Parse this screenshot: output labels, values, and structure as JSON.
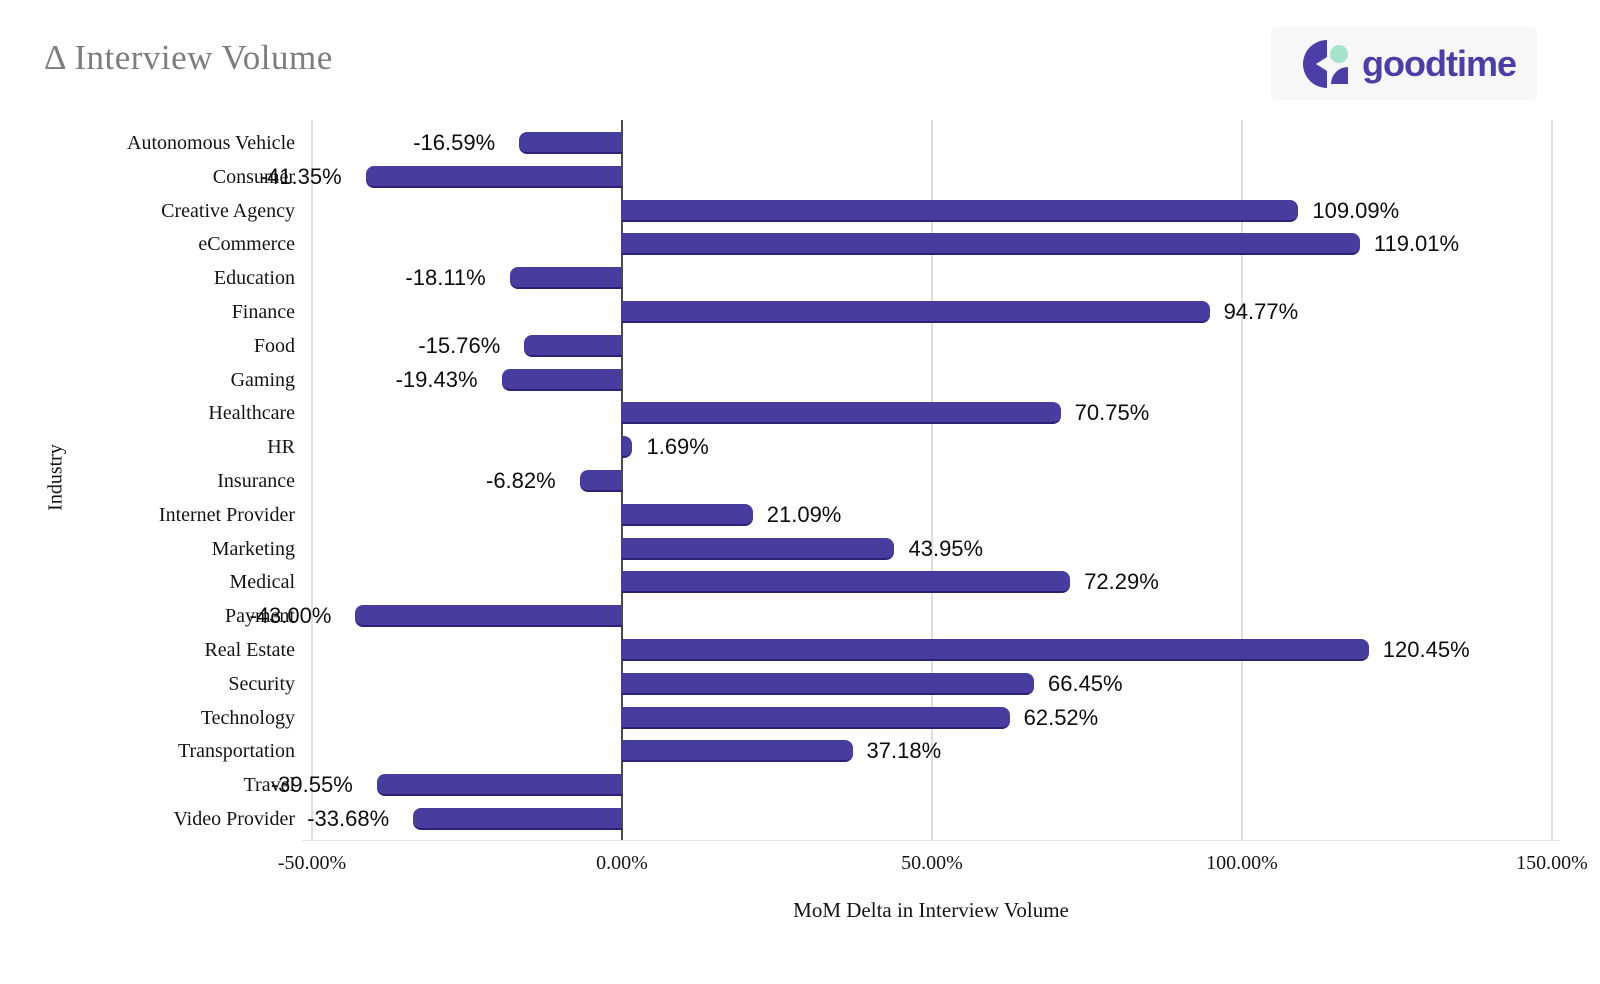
{
  "header": {
    "title": "Δ Interview Volume",
    "logo_text": "goodtime"
  },
  "colors": {
    "bar": "#473D9E",
    "bar_edge": "#2B2178",
    "zero_axis": "#4A4A4A",
    "gridline": "#DEDEDE",
    "title_gray": "#7D7D7D",
    "logo_purple": "#4B3FA6",
    "logo_green": "#A5E3CA",
    "logo_bg": "#F7F7F9"
  },
  "chart_data": {
    "type": "bar",
    "orientation": "horizontal",
    "title": "Δ Interview Volume",
    "xlabel": "MoM Delta in Interview Volume",
    "ylabel": "Industry",
    "xlim": [
      -50,
      150
    ],
    "grid": true,
    "x_ticks": [
      {
        "value": -50,
        "label": "-50.00%"
      },
      {
        "value": 0,
        "label": "0.00%"
      },
      {
        "value": 50,
        "label": "50.00%"
      },
      {
        "value": 100,
        "label": "100.00%"
      },
      {
        "value": 150,
        "label": "150.00%"
      }
    ],
    "categories": [
      "Autonomous Vehicle",
      "Consumer",
      "Creative Agency",
      "eCommerce",
      "Education",
      "Finance",
      "Food",
      "Gaming",
      "Healthcare",
      "HR",
      "Insurance",
      "Internet Provider",
      "Marketing",
      "Medical",
      "Payment",
      "Real Estate",
      "Security",
      "Technology",
      "Transportation",
      "Travel",
      "Video Provider"
    ],
    "values": [
      -16.59,
      -41.35,
      109.09,
      119.01,
      -18.11,
      94.77,
      -15.76,
      -19.43,
      70.75,
      1.69,
      -6.82,
      21.09,
      43.95,
      72.29,
      -43.0,
      120.45,
      66.45,
      62.52,
      37.18,
      -39.55,
      -33.68
    ],
    "value_labels": [
      "-16.59%",
      "-41.35%",
      "109.09%",
      "119.01%",
      "-18.11%",
      "94.77%",
      "-15.76%",
      "-19.43%",
      "70.75%",
      "1.69%",
      "-6.82%",
      "21.09%",
      "43.95%",
      "72.29%",
      "-43.00%",
      "120.45%",
      "66.45%",
      "62.52%",
      "37.18%",
      "-39.55%",
      "-33.68%"
    ]
  }
}
